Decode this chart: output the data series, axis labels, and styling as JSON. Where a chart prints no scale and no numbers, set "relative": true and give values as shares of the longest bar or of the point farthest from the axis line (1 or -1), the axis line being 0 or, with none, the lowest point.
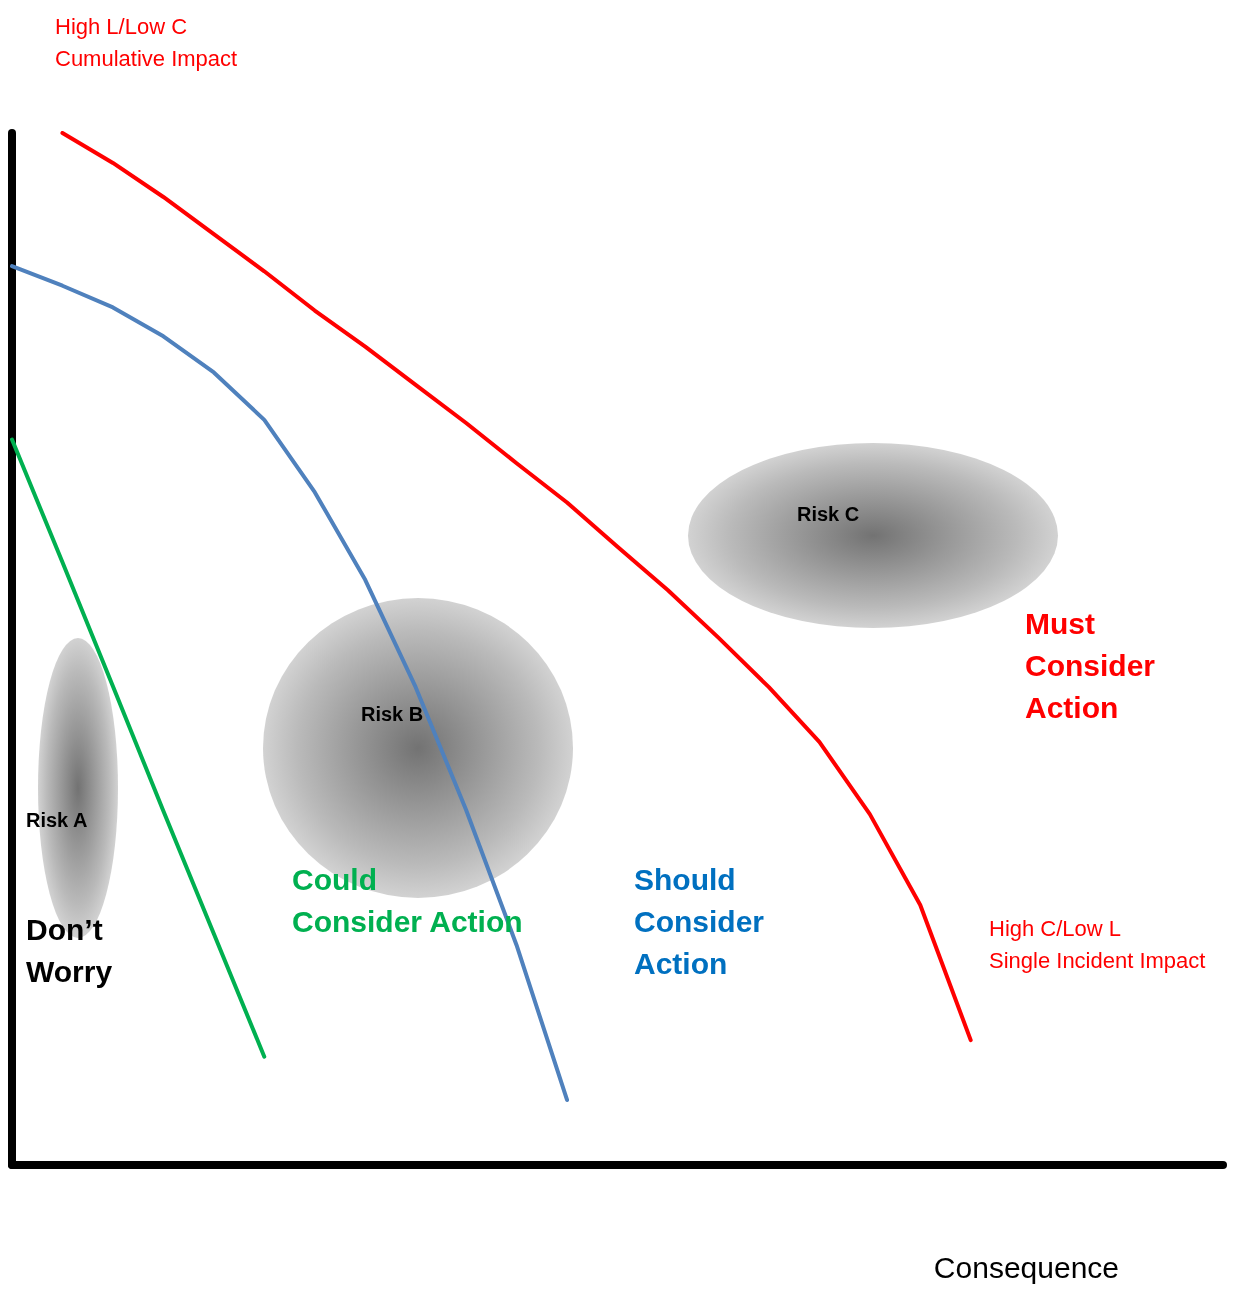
{
  "chart_data": {
    "type": "line",
    "relative": true,
    "xlabel": "Consequence",
    "marker": "none",
    "line_style": "solid",
    "categories": [
      null,
      null,
      null,
      null,
      null,
      null,
      null,
      null,
      null,
      null,
      null,
      null,
      null,
      null,
      null,
      null,
      null,
      null,
      null,
      null,
      null,
      null,
      null,
      null,
      null
    ],
    "series": [
      {
        "color": "#ff0000",
        "values": [
          null,
          1,
          0.971,
          0.938,
          0.902,
          0.866,
          0.828,
          0.793,
          0.756,
          0.719,
          0.68,
          0.642,
          0.599,
          0.557,
          0.511,
          0.463,
          0.41,
          0.34,
          0.252,
          0.121,
          null,
          null,
          null,
          null,
          null
        ]
      },
      {
        "color": "#4f81bd",
        "values": [
          0.871,
          0.852,
          0.831,
          0.803,
          0.768,
          0.722,
          0.652,
          0.567,
          0.463,
          0.344,
          0.213,
          0.063,
          null,
          null,
          null,
          null,
          null,
          null,
          null,
          null,
          null,
          null,
          null,
          null,
          null
        ]
      },
      {
        "color": "#00b050",
        "values": [
          0.703,
          0.584,
          0.464,
          0.343,
          0.224,
          0.105,
          null,
          null,
          null,
          null,
          null,
          null,
          null,
          null,
          null,
          null,
          null,
          null,
          null,
          null,
          null,
          null,
          null,
          null,
          null
        ]
      }
    ],
    "annotations": [
      "High L/Low C\nCumulative Impact",
      "Must\nConsider\nAction",
      "Could\nConsider Action",
      "Should\nConsider\nAction",
      "Don’t\nWorry",
      "High C/Low L\nSingle Incident Impact",
      "Risk A",
      "Risk B",
      "Risk C"
    ]
  }
}
